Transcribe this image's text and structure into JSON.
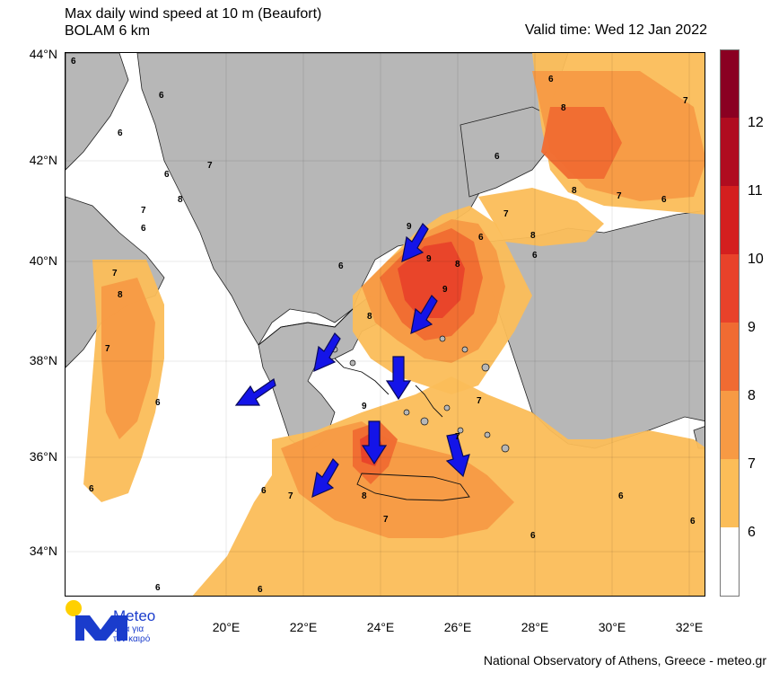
{
  "title": {
    "line1": "Max daily wind speed at 10 m (Beaufort)",
    "line2": "BOLAM 6 km",
    "valid": "Valid time: Wed 12 Jan 2022"
  },
  "axes": {
    "lat": [
      "44°N",
      "42°N",
      "40°N",
      "38°N",
      "36°N",
      "34°N"
    ],
    "lon": [
      "20°E",
      "22°E",
      "24°E",
      "26°E",
      "28°E",
      "30°E",
      "32°E"
    ]
  },
  "colorbar": {
    "labels": [
      "12",
      "11",
      "10",
      "9",
      "8",
      "7",
      "6"
    ],
    "colors": [
      "#8a0022",
      "#b00c20",
      "#d41f1f",
      "#e8422a",
      "#f06b32",
      "#f79a44",
      "#fbbd58",
      "#ffffff"
    ]
  },
  "map_labels": [
    "6",
    "7",
    "8",
    "9"
  ],
  "logo": {
    "name": "Meteo",
    "tagline_1": "Όλα για",
    "tagline_2": "τον καιρό"
  },
  "credit": "National Observatory of Athens, Greece - meteo.gr"
}
